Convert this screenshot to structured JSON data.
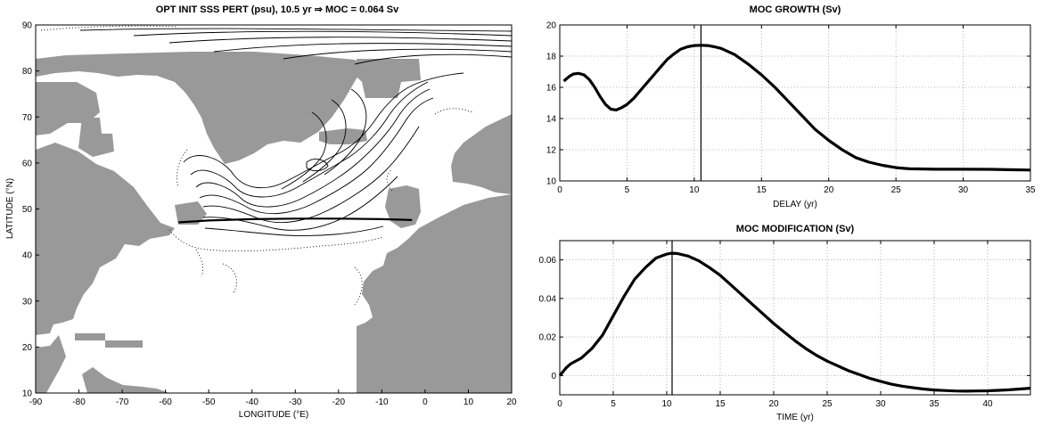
{
  "chart_data": [
    {
      "type": "contour-map",
      "title": "OPT INIT SSS PERT (psu), 10.5 yr ⇒ MOC = 0.064 Sv",
      "xlabel": "LONGITUDE (°E)",
      "ylabel": "LATITUDE (°N)",
      "xlim": [
        -90,
        20
      ],
      "ylim": [
        10,
        90
      ],
      "xticks": [
        -90,
        -80,
        -70,
        -60,
        -50,
        -40,
        -30,
        -20,
        -10,
        0,
        10,
        20
      ],
      "yticks": [
        10,
        20,
        30,
        40,
        50,
        60,
        70,
        80,
        90
      ],
      "land_color": "#999999",
      "section_line": {
        "lon": [
          -57,
          -50,
          -40,
          -30,
          -20,
          -10,
          -3
        ],
        "lat": [
          47.1,
          47.5,
          47.8,
          47.9,
          47.9,
          47.8,
          47.6
        ]
      }
    },
    {
      "type": "line",
      "title": "MOC GROWTH (Sv)",
      "xlabel": "DELAY (yr)",
      "ylabel": "",
      "xlim": [
        0,
        35
      ],
      "ylim": [
        10,
        20
      ],
      "xticks": [
        0,
        5,
        10,
        15,
        20,
        25,
        30,
        35
      ],
      "yticks": [
        10,
        12,
        14,
        16,
        18,
        20
      ],
      "grid": true,
      "vline": 10.5,
      "x": [
        0.3,
        0.7,
        1.0,
        1.4,
        1.8,
        2.2,
        2.6,
        3.0,
        3.4,
        3.8,
        4.2,
        4.6,
        5.0,
        5.5,
        6.0,
        6.5,
        7.0,
        7.5,
        8.0,
        8.5,
        9.0,
        9.5,
        10.0,
        10.5,
        11.0,
        11.5,
        12.0,
        13.0,
        14.0,
        15.0,
        16.0,
        17.0,
        18.0,
        19.0,
        20.0,
        21.0,
        22.0,
        23.0,
        24.0,
        25.0,
        26.0,
        28.0,
        30.0,
        32.0,
        35.0
      ],
      "y": [
        16.4,
        16.7,
        16.85,
        16.9,
        16.8,
        16.5,
        16.0,
        15.4,
        14.9,
        14.6,
        14.55,
        14.7,
        14.9,
        15.3,
        15.8,
        16.3,
        16.8,
        17.3,
        17.8,
        18.15,
        18.45,
        18.6,
        18.68,
        18.7,
        18.68,
        18.6,
        18.5,
        18.1,
        17.5,
        16.8,
        16.0,
        15.1,
        14.2,
        13.3,
        12.6,
        12.0,
        11.5,
        11.2,
        11.0,
        10.85,
        10.78,
        10.75,
        10.75,
        10.74,
        10.7
      ]
    },
    {
      "type": "line",
      "title": "MOC MODIFICATION (Sv)",
      "xlabel": "TIME (yr)",
      "ylabel": "",
      "xlim": [
        0,
        44
      ],
      "ylim": [
        -0.01,
        0.07
      ],
      "xticks": [
        0,
        5,
        10,
        15,
        20,
        25,
        30,
        35,
        40
      ],
      "yticks": [
        0,
        0.02,
        0.04,
        0.06
      ],
      "grid": true,
      "vline": 10.5,
      "x": [
        0.0,
        0.3,
        0.6,
        1.0,
        2.0,
        3.0,
        4.0,
        5.0,
        6.0,
        7.0,
        8.0,
        9.0,
        10.0,
        10.5,
        11.0,
        12.0,
        13.0,
        14.0,
        15.0,
        16.0,
        17.0,
        18.0,
        19.0,
        20.0,
        21.0,
        22.0,
        23.0,
        24.0,
        25.0,
        26.0,
        27.0,
        28.0,
        29.0,
        30.0,
        31.0,
        32.0,
        33.0,
        34.0,
        35.0,
        36.0,
        37.0,
        38.0,
        39.0,
        40.0,
        41.0,
        42.0,
        43.0,
        44.0
      ],
      "y": [
        0.0,
        0.002,
        0.004,
        0.006,
        0.009,
        0.014,
        0.021,
        0.031,
        0.041,
        0.05,
        0.056,
        0.061,
        0.063,
        0.0635,
        0.0633,
        0.062,
        0.0595,
        0.056,
        0.052,
        0.047,
        0.042,
        0.037,
        0.032,
        0.027,
        0.0225,
        0.018,
        0.014,
        0.0105,
        0.0075,
        0.005,
        0.0025,
        0.0005,
        -0.0015,
        -0.003,
        -0.0045,
        -0.0055,
        -0.0063,
        -0.007,
        -0.0075,
        -0.0078,
        -0.008,
        -0.0081,
        -0.008,
        -0.0079,
        -0.0077,
        -0.0074,
        -0.007,
        -0.0066
      ]
    }
  ]
}
